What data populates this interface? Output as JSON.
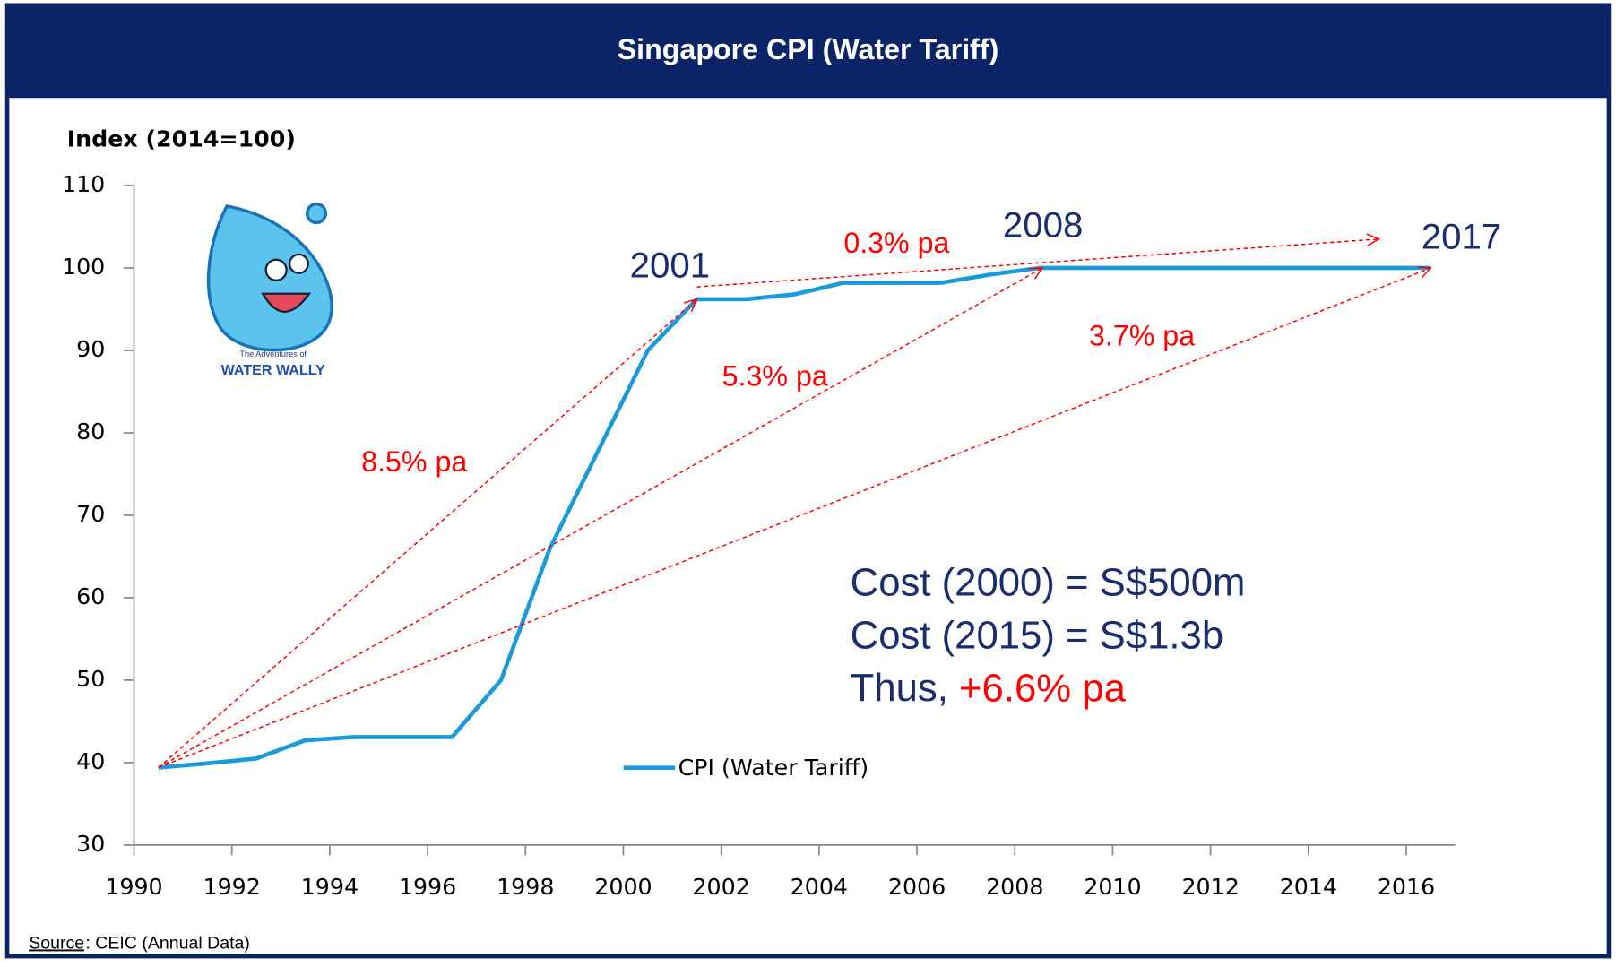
{
  "chart_data": {
    "type": "line",
    "title": "Singapore CPI (Water Tariff)",
    "y_label": "Index (2014=100)",
    "categories": [
      "1990",
      null,
      "1992",
      null,
      "1994",
      null,
      "1996",
      null,
      "1998",
      null,
      "2000",
      null,
      "2002",
      null,
      "2004",
      null,
      "2006",
      null,
      "2008",
      null,
      "2010",
      null,
      "2012",
      null,
      "2014",
      null,
      "2016"
    ],
    "series": [
      {
        "name": "CPI (Water Tariff)",
        "color": "#1a9bd7",
        "values": [
          39.4,
          39.9,
          40.5,
          42.7,
          43.1,
          43.1,
          43.1,
          50,
          66,
          78,
          90,
          96.2,
          96.2,
          96.8,
          98.2,
          98.2,
          98.2,
          99.2,
          100,
          100,
          100,
          100,
          100,
          100,
          100,
          100,
          100
        ]
      }
    ],
    "ylim": [
      30,
      110
    ],
    "yticks": [
      30,
      40,
      50,
      60,
      70,
      80,
      90,
      100,
      110
    ],
    "grid": false,
    "annotations": {
      "years": [
        "2001",
        "2008",
        "2017"
      ],
      "rates": [
        "8.5% pa",
        "5.3% pa",
        "3.7% pa",
        "0.3% pa"
      ]
    },
    "note": {
      "lines": [
        "Cost (2000) = S$500m",
        "Cost (2015) = S$1.3b",
        "Thus, "
      ],
      "highlight": "+6.6% pa"
    },
    "source_label": "Source",
    "source_text": ": CEIC (Annual Data)"
  },
  "logo": {
    "top": "The Adventures of",
    "name": "WATER WALLY"
  }
}
